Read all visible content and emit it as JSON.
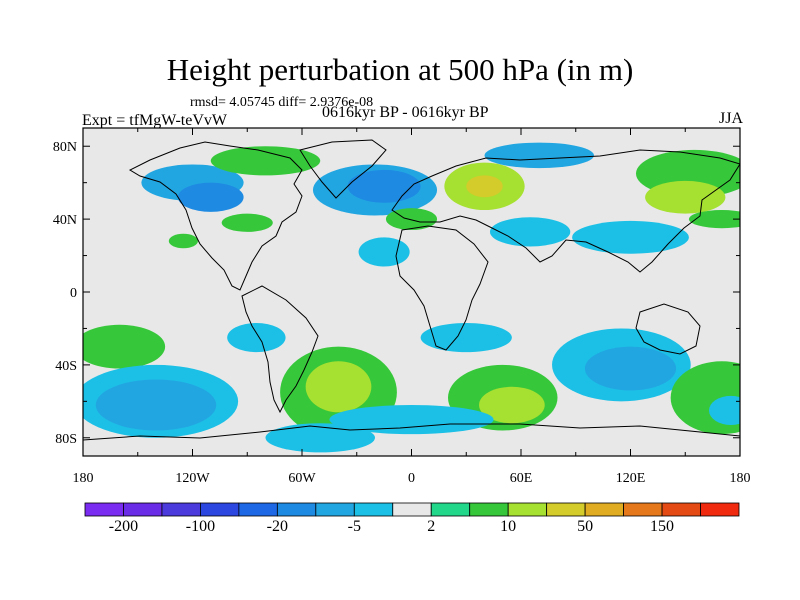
{
  "header": {
    "title": "Height perturbation at 500 hPa (in m)",
    "stats": "rmsd= 4.05745  diff= 2.9376e-08",
    "experiment": "Expt = tfMgW-teVvW",
    "period": "0616kyr BP - 0616kyr BP",
    "season": "JJA"
  },
  "map": {
    "projection": "cylindrical-equidistant",
    "lon_range": [
      -180,
      180
    ],
    "lat_range": [
      -90,
      90
    ],
    "lat_ticks": [
      {
        "value": 80,
        "label": "80N"
      },
      {
        "value": 40,
        "label": "40N"
      },
      {
        "value": 0,
        "label": "0"
      },
      {
        "value": -40,
        "label": "40S"
      },
      {
        "value": -80,
        "label": "80S"
      }
    ],
    "lon_ticks": [
      {
        "value": -180,
        "label": "180"
      },
      {
        "value": -120,
        "label": "120W"
      },
      {
        "value": -60,
        "label": "60W"
      },
      {
        "value": 0,
        "label": "0"
      },
      {
        "value": 60,
        "label": "60E"
      },
      {
        "value": 120,
        "label": "120E"
      },
      {
        "value": 180,
        "label": "180"
      }
    ],
    "background_color": "#e8e8e8",
    "fields": [
      {
        "lon": -120,
        "lat": 60,
        "rx": 28,
        "ry": 10,
        "level": -2
      },
      {
        "lon": -110,
        "lat": 52,
        "rx": 18,
        "ry": 8,
        "level": -3
      },
      {
        "lon": -80,
        "lat": 72,
        "rx": 30,
        "ry": 8,
        "level": 1
      },
      {
        "lon": -20,
        "lat": 56,
        "rx": 34,
        "ry": 14,
        "level": -2
      },
      {
        "lon": -15,
        "lat": 58,
        "rx": 20,
        "ry": 9,
        "level": -3
      },
      {
        "lon": 40,
        "lat": 58,
        "rx": 22,
        "ry": 13,
        "level": 2
      },
      {
        "lon": 40,
        "lat": 58,
        "rx": 10,
        "ry": 6,
        "level": 3
      },
      {
        "lon": 70,
        "lat": 75,
        "rx": 30,
        "ry": 7,
        "level": -2
      },
      {
        "lon": 155,
        "lat": 65,
        "rx": 32,
        "ry": 13,
        "level": 1
      },
      {
        "lon": 150,
        "lat": 52,
        "rx": 22,
        "ry": 9,
        "level": 2
      },
      {
        "lon": 120,
        "lat": 30,
        "rx": 32,
        "ry": 9,
        "level": -1
      },
      {
        "lon": 65,
        "lat": 33,
        "rx": 22,
        "ry": 8,
        "level": -1
      },
      {
        "lon": 0,
        "lat": 40,
        "rx": 14,
        "ry": 6,
        "level": 1
      },
      {
        "lon": -90,
        "lat": 38,
        "rx": 14,
        "ry": 5,
        "level": 1
      },
      {
        "lon": 170,
        "lat": 40,
        "rx": 18,
        "ry": 5,
        "level": 1
      },
      {
        "lon": -15,
        "lat": 22,
        "rx": 14,
        "ry": 8,
        "level": -1
      },
      {
        "lon": -125,
        "lat": 28,
        "rx": 8,
        "ry": 4,
        "level": 1
      },
      {
        "lon": -85,
        "lat": -25,
        "rx": 16,
        "ry": 8,
        "level": -1
      },
      {
        "lon": -160,
        "lat": -30,
        "rx": 25,
        "ry": 12,
        "level": 1
      },
      {
        "lon": 30,
        "lat": -25,
        "rx": 25,
        "ry": 8,
        "level": -1
      },
      {
        "lon": 115,
        "lat": -40,
        "rx": 38,
        "ry": 20,
        "level": -1
      },
      {
        "lon": 120,
        "lat": -42,
        "rx": 25,
        "ry": 12,
        "level": -2
      },
      {
        "lon": -140,
        "lat": -60,
        "rx": 45,
        "ry": 20,
        "level": -1
      },
      {
        "lon": -140,
        "lat": -62,
        "rx": 33,
        "ry": 14,
        "level": -2
      },
      {
        "lon": -40,
        "lat": -55,
        "rx": 32,
        "ry": 25,
        "level": 1
      },
      {
        "lon": -40,
        "lat": -52,
        "rx": 18,
        "ry": 14,
        "level": 2
      },
      {
        "lon": -50,
        "lat": -80,
        "rx": 30,
        "ry": 8,
        "level": -1
      },
      {
        "lon": 50,
        "lat": -58,
        "rx": 30,
        "ry": 18,
        "level": 1
      },
      {
        "lon": 55,
        "lat": -62,
        "rx": 18,
        "ry": 10,
        "level": 2
      },
      {
        "lon": 170,
        "lat": -58,
        "rx": 28,
        "ry": 20,
        "level": 1
      },
      {
        "lon": 175,
        "lat": -65,
        "rx": 12,
        "ry": 8,
        "level": -1
      },
      {
        "lon": 0,
        "lat": -70,
        "rx": 45,
        "ry": 8,
        "level": -1
      }
    ]
  },
  "colorbar": {
    "colors": [
      "#7a2cf0",
      "#6a2ce6",
      "#4b3bdc",
      "#2c46e0",
      "#1e68e6",
      "#1e8ae2",
      "#22a6e2",
      "#1cc0e6",
      "#e8e8e8",
      "#22d68a",
      "#36c83a",
      "#a6e030",
      "#d4cc2a",
      "#e0ac22",
      "#e4781a",
      "#e44a14",
      "#f02a0e"
    ],
    "labels": [
      {
        "boundary": 1,
        "text": "-200"
      },
      {
        "boundary": 3,
        "text": "-100"
      },
      {
        "boundary": 5,
        "text": "-20"
      },
      {
        "boundary": 7,
        "text": "-5"
      },
      {
        "boundary": 9,
        "text": "2"
      },
      {
        "boundary": 11,
        "text": "10"
      },
      {
        "boundary": 13,
        "text": "50"
      },
      {
        "boundary": 15,
        "text": "150"
      }
    ]
  }
}
